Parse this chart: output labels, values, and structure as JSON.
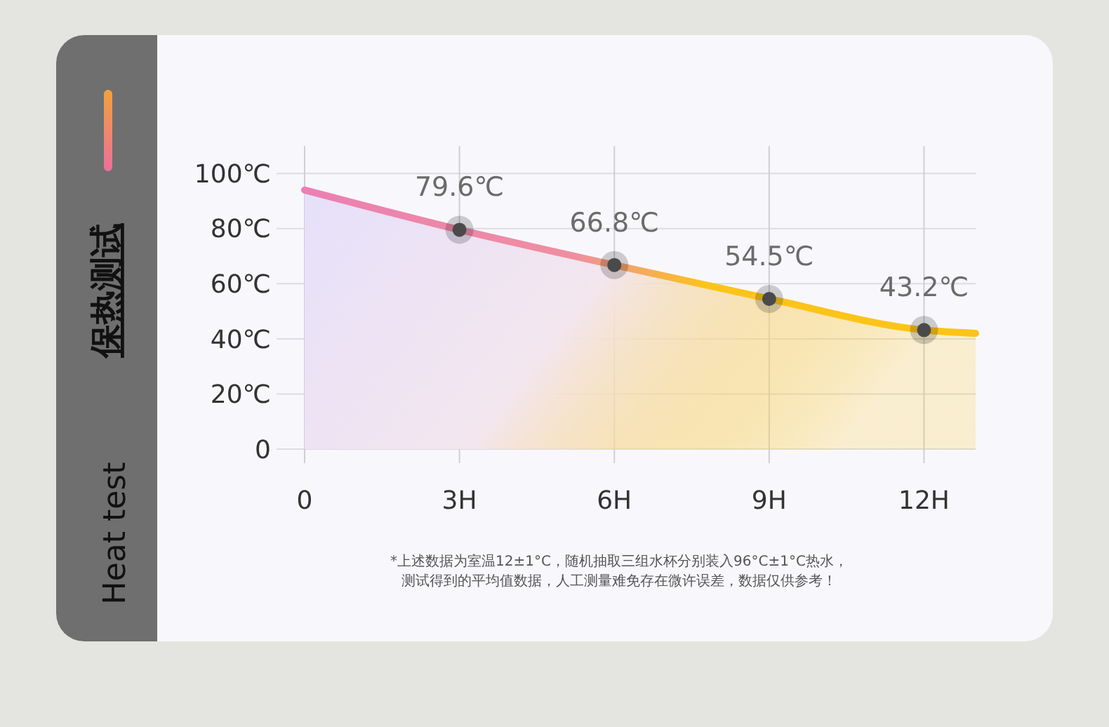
{
  "chart_data": {
    "type": "area",
    "title": "保热测试",
    "subtitle": "Heat test",
    "x": [
      0,
      3,
      6,
      9,
      12,
      13
    ],
    "series": [
      {
        "color": "#fcc419",
        "values": [
          94,
          79.6,
          66.8,
          54.5,
          43.2,
          42
        ],
        "value_labels": [
          null,
          "79.6℃",
          "66.8℃",
          "54.5℃",
          "43.2℃",
          null
        ]
      }
    ],
    "xlim": [
      0,
      13
    ],
    "xticks": [
      {
        "value": 0,
        "label": "0"
      },
      {
        "value": 3,
        "label": "3H"
      },
      {
        "value": 6,
        "label": "6H"
      },
      {
        "value": 9,
        "label": "9H"
      },
      {
        "value": 12,
        "label": "12H"
      }
    ],
    "ylim": [
      0,
      110
    ],
    "yticks": [
      {
        "value": 0,
        "label": "0"
      },
      {
        "value": 20,
        "label": "20℃"
      },
      {
        "value": 40,
        "label": "40℃"
      },
      {
        "value": 60,
        "label": "60℃"
      },
      {
        "value": 80,
        "label": "80℃"
      },
      {
        "value": 100,
        "label": "100℃"
      }
    ],
    "grid": true,
    "marker": "circle",
    "annotations": [
      "*上述数据为室温12±1°C，随机抽取三组水杯分别装入96°C±1°C热水，",
      "测试得到的平均值数据，人工测量难免存在微许误差，数据仅供参考！"
    ]
  }
}
